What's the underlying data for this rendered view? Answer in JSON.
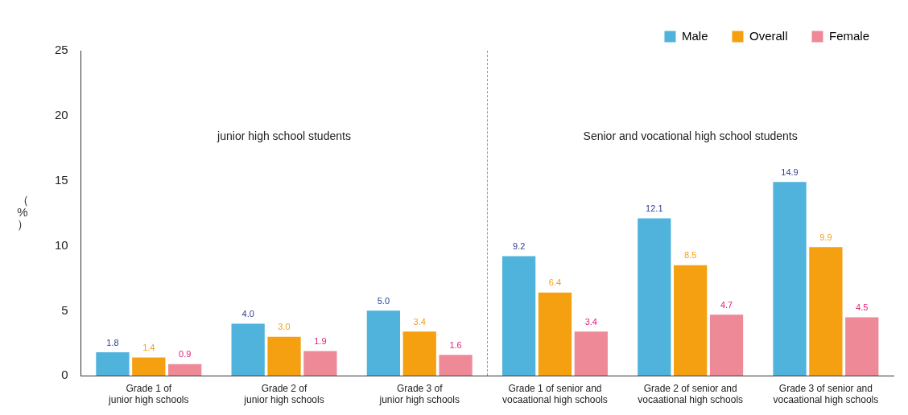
{
  "chart_data": {
    "type": "bar",
    "ylabel": "（%）",
    "categories": [
      "Grade 1 of\njunior high schools",
      "Grade 2 of\njunior high schools",
      "Grade 3 of\njunior high schools",
      "Grade 1 of senior and\nvocaational high schools",
      "Grade 2 of senior and\nvocaational high schools",
      "Grade 3 of senior and\nvocaational high schools"
    ],
    "series": [
      {
        "name": "Male",
        "color": "#4fb3dc",
        "values": [
          1.8,
          4,
          5,
          9.2,
          12.1,
          14.9
        ],
        "value_labels": [
          "1.8",
          "4.0",
          "5.0",
          "9.2",
          "12.1",
          "14.9"
        ]
      },
      {
        "name": "Overall",
        "color": "#f5a010",
        "values": [
          1.4,
          3,
          3.4,
          6.4,
          8.5,
          9.9
        ],
        "value_labels": [
          "1.4",
          "3.0",
          "3.4",
          "6.4",
          "8.5",
          "9.9"
        ]
      },
      {
        "name": "Female",
        "color": "#ee8a98",
        "values": [
          0.9,
          1.9,
          1.6,
          3.4,
          4.7,
          4.5
        ],
        "value_labels": [
          "0.9",
          "1.9",
          "1.6",
          "3.4",
          "4.7",
          "4.5"
        ]
      }
    ],
    "ylim": [
      0,
      25
    ],
    "yticks": [
      0,
      5,
      10,
      15,
      20,
      25
    ],
    "grid": false,
    "legend": "top right",
    "annotations": [
      "junior high school students",
      "Senior and vocational high school students"
    ]
  }
}
